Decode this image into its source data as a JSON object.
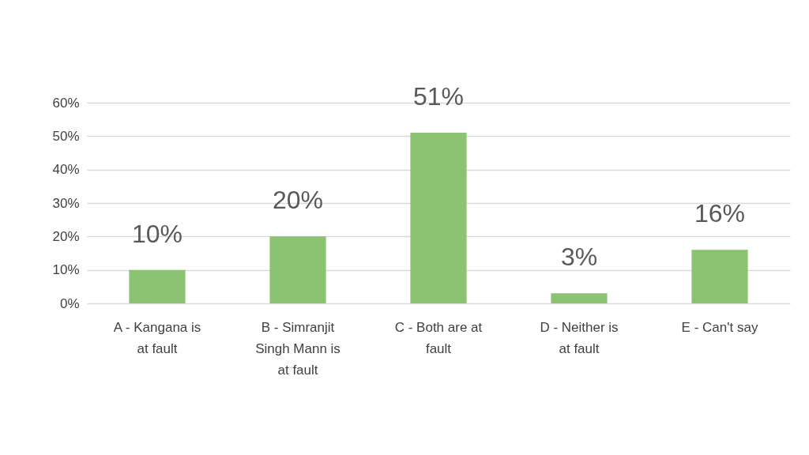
{
  "chart_data": {
    "type": "bar",
    "categories": [
      "A - Kangana is at fault",
      "B - Simranjit Singh Mann is at fault",
      "C - Both are at fault",
      "D - Neither is at fault",
      "E - Can't say"
    ],
    "values": [
      10,
      20,
      51,
      3,
      16
    ],
    "value_labels": [
      "10%",
      "20%",
      "51%",
      "3%",
      "16%"
    ],
    "color": "#8cc373",
    "ylim": [
      0,
      60
    ],
    "yticks": [
      {
        "value": 0,
        "label": "0%"
      },
      {
        "value": 10,
        "label": "10%"
      },
      {
        "value": 20,
        "label": "20%"
      },
      {
        "value": 30,
        "label": "30%"
      },
      {
        "value": 40,
        "label": "40%"
      },
      {
        "value": 50,
        "label": "50%"
      },
      {
        "value": 60,
        "label": "60%"
      }
    ],
    "grid": true
  }
}
